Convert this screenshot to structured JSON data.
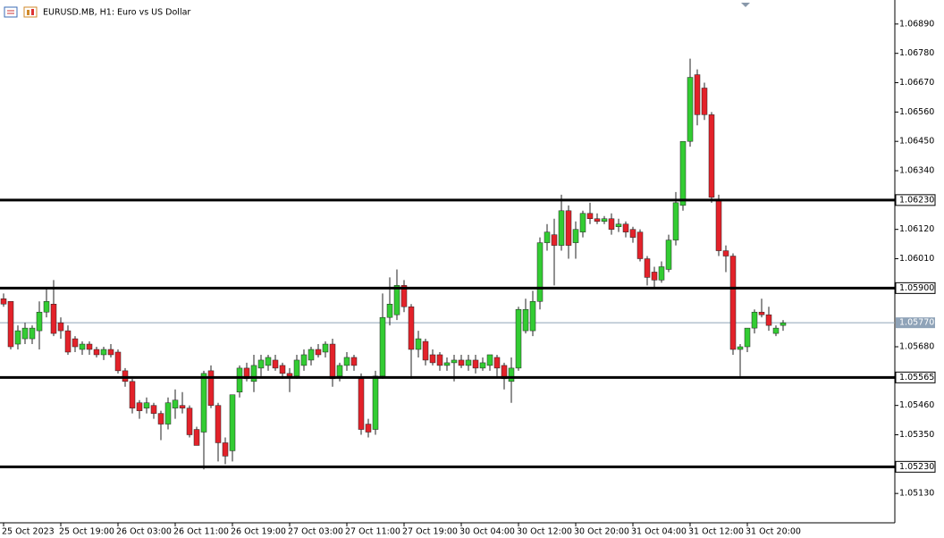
{
  "chart_data": {
    "type": "candlestick",
    "title": "EURUSD.MB, H1:  Euro vs US Dollar",
    "up_color": "#33cc33",
    "down_color": "#e3222a",
    "categories": [
      "25 Oct 2023",
      null,
      null,
      null,
      null,
      null,
      null,
      null,
      "25 Oct 19:00",
      null,
      null,
      null,
      null,
      null,
      null,
      null,
      "26 Oct 03:00",
      null,
      null,
      null,
      null,
      null,
      null,
      null,
      "26 Oct 11:00",
      null,
      null,
      null,
      null,
      null,
      null,
      null,
      "26 Oct 19:00",
      null,
      null,
      null,
      null,
      null,
      null,
      null,
      "27 Oct 03:00",
      null,
      null,
      null,
      null,
      null,
      null,
      null,
      "27 Oct 11:00",
      null,
      null,
      null,
      null,
      null,
      null,
      null,
      "27 Oct 19:00",
      null,
      null,
      null,
      null,
      null,
      null,
      null,
      "30 Oct 04:00",
      null,
      null,
      null,
      null,
      null,
      null,
      null,
      "30 Oct 12:00",
      null,
      null,
      null,
      null,
      null,
      null,
      null,
      "30 Oct 20:00",
      null,
      null,
      null,
      null,
      null,
      null,
      null,
      "31 Oct 04:00",
      null,
      null,
      null,
      null,
      null,
      null,
      null,
      "31 Oct 12:00",
      null,
      null,
      null,
      null,
      null,
      null,
      null,
      "31 Oct 20:00",
      null,
      null,
      null,
      null,
      null
    ],
    "open": [
      1.0586,
      1.0585,
      1.0569,
      1.0571,
      1.0571,
      1.0574,
      1.0581,
      1.0584,
      1.0577,
      1.0574,
      1.0571,
      1.0567,
      1.0569,
      1.0567,
      1.0565,
      1.0567,
      1.0566,
      1.0559,
      1.0555,
      1.0547,
      1.0545,
      1.0546,
      1.0543,
      1.0539,
      1.0545,
      1.0546,
      1.0545,
      1.0537,
      1.0536,
      1.0559,
      1.0546,
      1.0532,
      1.0529,
      1.0551,
      1.056,
      1.0555,
      1.056,
      1.0561,
      1.0563,
      1.0561,
      1.0558,
      1.0557,
      1.0561,
      1.0563,
      1.0567,
      1.0566,
      1.0569,
      1.0557,
      1.0561,
      1.0564,
      1.0556,
      1.0539,
      1.0537,
      1.0557,
      1.0579,
      1.058,
      1.0591,
      1.0583,
      1.0567,
      1.057,
      1.0565,
      1.0565,
      1.0561,
      1.0562,
      1.0563,
      1.0561,
      1.0563,
      1.056,
      1.0561,
      1.0564,
      1.0561,
      1.0555,
      1.056,
      1.0574,
      1.0574,
      1.0585,
      1.0607,
      1.061,
      1.0606,
      1.0619,
      1.0607,
      1.0611,
      1.0618,
      1.0616,
      1.0615,
      1.0616,
      1.0613,
      1.0614,
      1.0612,
      1.0611,
      1.0601,
      1.0596,
      1.0593,
      1.0597,
      1.0608,
      1.0621,
      1.0645,
      1.067,
      1.0665,
      1.0655,
      1.0623,
      1.0604,
      1.0602,
      1.0567,
      1.0568,
      1.0575,
      1.0581,
      1.058,
      1.0573,
      1.0576
    ],
    "high": [
      1.0588,
      1.0585,
      1.0576,
      1.0577,
      1.0576,
      1.0585,
      1.059,
      1.0593,
      1.0579,
      1.0576,
      1.0572,
      1.057,
      1.057,
      1.0568,
      1.0568,
      1.0569,
      1.0567,
      1.056,
      1.0556,
      1.0548,
      1.0549,
      1.0547,
      1.0544,
      1.0549,
      1.0552,
      1.0551,
      1.0546,
      1.0538,
      1.0559,
      1.0561,
      1.0547,
      1.0534,
      1.055,
      1.0561,
      1.0562,
      1.0565,
      1.0565,
      1.0565,
      1.0565,
      1.0562,
      1.056,
      1.0565,
      1.0567,
      1.0568,
      1.0569,
      1.057,
      1.0571,
      1.0562,
      1.0566,
      1.0565,
      1.0558,
      1.0541,
      1.0559,
      1.0588,
      1.0594,
      1.0597,
      1.0593,
      1.0584,
      1.0574,
      1.0571,
      1.0567,
      1.0566,
      1.0564,
      1.0565,
      1.0565,
      1.0565,
      1.0565,
      1.0564,
      1.0565,
      1.0565,
      1.0562,
      1.0564,
      1.0583,
      1.0586,
      1.0589,
      1.0609,
      1.0614,
      1.0616,
      1.0625,
      1.0621,
      1.0615,
      1.0619,
      1.0622,
      1.0618,
      1.0617,
      1.0618,
      1.0616,
      1.0615,
      1.0613,
      1.0612,
      1.0602,
      1.0598,
      1.06,
      1.061,
      1.0626,
      1.0645,
      1.0676,
      1.0672,
      1.0667,
      1.0656,
      1.0625,
      1.0606,
      1.0603,
      1.0569,
      1.0575,
      1.0582,
      1.0586,
      1.0583,
      1.0576,
      1.0578
    ],
    "low": [
      1.0583,
      1.0567,
      1.0567,
      1.0569,
      1.0569,
      1.0567,
      1.0579,
      1.0572,
      1.0571,
      1.0565,
      1.0566,
      1.0565,
      1.0565,
      1.0564,
      1.0563,
      1.0564,
      1.0558,
      1.0553,
      1.0543,
      1.0541,
      1.0543,
      1.0541,
      1.0533,
      1.0537,
      1.0541,
      1.0543,
      1.0534,
      1.0531,
      1.0522,
      1.0545,
      1.0525,
      1.0524,
      1.0525,
      1.0549,
      1.0555,
      1.0551,
      1.0557,
      1.0559,
      1.0559,
      1.0556,
      1.0551,
      1.0556,
      1.0559,
      1.0561,
      1.0564,
      1.0564,
      1.0553,
      1.0555,
      1.0559,
      1.0559,
      1.0535,
      1.0534,
      1.0535,
      1.0556,
      1.0576,
      1.0578,
      1.0581,
      1.0556,
      1.0564,
      1.0561,
      1.0561,
      1.0559,
      1.0559,
      1.0555,
      1.056,
      1.0559,
      1.0558,
      1.0559,
      1.0559,
      1.0557,
      1.0552,
      1.0547,
      1.0559,
      1.0573,
      1.0572,
      1.0582,
      1.0604,
      1.0591,
      1.0604,
      1.0601,
      1.0601,
      1.0609,
      1.0614,
      1.0614,
      1.0614,
      1.061,
      1.0611,
      1.0609,
      1.0607,
      1.06,
      1.0591,
      1.059,
      1.0592,
      1.0596,
      1.0606,
      1.0619,
      1.0643,
      1.0651,
      1.0653,
      1.0622,
      1.0602,
      1.0596,
      1.0565,
      1.0557,
      1.0566,
      1.0573,
      1.0579,
      1.0574,
      1.0572,
      1.0574
    ],
    "close": [
      1.0584,
      1.0568,
      1.0574,
      1.0575,
      1.0575,
      1.0581,
      1.0585,
      1.0573,
      1.0574,
      1.0566,
      1.0568,
      1.0569,
      1.0567,
      1.0565,
      1.0567,
      1.0565,
      1.0559,
      1.0555,
      1.0545,
      1.0544,
      1.0547,
      1.0543,
      1.0539,
      1.0547,
      1.0548,
      1.0545,
      1.0535,
      1.0531,
      1.0558,
      1.0546,
      1.0532,
      1.0527,
      1.055,
      1.056,
      1.0556,
      1.0561,
      1.0563,
      1.0564,
      1.056,
      1.0558,
      1.0557,
      1.0563,
      1.0565,
      1.0567,
      1.0565,
      1.0569,
      1.0556,
      1.0561,
      1.0564,
      1.0561,
      1.0537,
      1.0536,
      1.0557,
      1.0579,
      1.0584,
      1.0591,
      1.0583,
      1.0567,
      1.0571,
      1.0563,
      1.0562,
      1.0561,
      1.0562,
      1.0563,
      1.0561,
      1.0563,
      1.056,
      1.0562,
      1.0565,
      1.056,
      1.0556,
      1.056,
      1.0582,
      1.0582,
      1.0585,
      1.0607,
      1.0611,
      1.0606,
      1.0619,
      1.0606,
      1.0612,
      1.0618,
      1.0616,
      1.0615,
      1.0616,
      1.0612,
      1.0614,
      1.0611,
      1.0609,
      1.0601,
      1.0594,
      1.0593,
      1.0598,
      1.0608,
      1.0622,
      1.0645,
      1.0669,
      1.0655,
      1.0655,
      1.0624,
      1.0604,
      1.0602,
      1.0567,
      1.0568,
      1.0575,
      1.0581,
      1.058,
      1.0576,
      1.0575,
      1.0577
    ],
    "ylim": [
      1.0502,
      1.0698
    ],
    "yticks": [
      {
        "value": 1.0689,
        "label": "1.06890"
      },
      {
        "value": 1.0678,
        "label": "1.06780"
      },
      {
        "value": 1.0667,
        "label": "1.06670"
      },
      {
        "value": 1.0656,
        "label": "1.06560"
      },
      {
        "value": 1.0645,
        "label": "1.06450"
      },
      {
        "value": 1.0634,
        "label": "1.06340"
      },
      {
        "value": 1.0612,
        "label": "1.06120"
      },
      {
        "value": 1.0601,
        "label": "1.06010"
      },
      {
        "value": 1.0568,
        "label": "1.05680"
      },
      {
        "value": 1.0546,
        "label": "1.05460"
      },
      {
        "value": 1.0535,
        "label": "1.05350"
      },
      {
        "value": 1.0513,
        "label": "1.05130"
      }
    ],
    "levels": [
      {
        "value": 1.0623,
        "label": "1.06230"
      },
      {
        "value": 1.059,
        "label": "1.05900"
      },
      {
        "value": 1.05565,
        "label": "1.05565"
      },
      {
        "value": 1.0523,
        "label": "1.05230"
      }
    ],
    "last_price": {
      "value": 1.0577,
      "label": "1.05770"
    },
    "grid": false
  }
}
